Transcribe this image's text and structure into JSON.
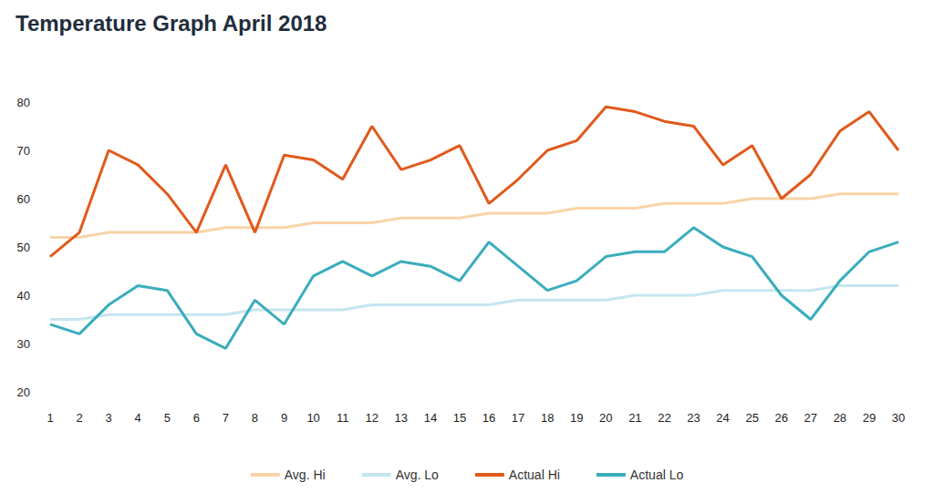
{
  "chart_data": {
    "type": "line",
    "title": "Temperature Graph April 2018",
    "categories": [
      "1",
      "2",
      "3",
      "4",
      "5",
      "6",
      "7",
      "8",
      "9",
      "10",
      "11",
      "12",
      "13",
      "14",
      "15",
      "16",
      "17",
      "18",
      "19",
      "20",
      "21",
      "22",
      "23",
      "24",
      "25",
      "26",
      "27",
      "28",
      "29",
      "30"
    ],
    "series": [
      {
        "name": "Avg. Hi",
        "color": "#f9d3a7",
        "values": [
          52,
          52,
          53,
          53,
          53,
          53,
          54,
          54,
          54,
          55,
          55,
          55,
          56,
          56,
          56,
          57,
          57,
          57,
          58,
          58,
          58,
          59,
          59,
          59,
          60,
          60,
          60,
          61,
          61,
          61
        ]
      },
      {
        "name": "Avg. Lo",
        "color": "#c5e6f0",
        "values": [
          35,
          35,
          36,
          36,
          36,
          36,
          36,
          37,
          37,
          37,
          37,
          38,
          38,
          38,
          38,
          38,
          39,
          39,
          39,
          39,
          40,
          40,
          40,
          41,
          41,
          41,
          41,
          42,
          42,
          42
        ]
      },
      {
        "name": "Actual Hi",
        "color": "#e05a1c",
        "values": [
          48,
          53,
          70,
          67,
          61,
          53,
          67,
          53,
          69,
          68,
          64,
          75,
          66,
          68,
          71,
          59,
          64,
          70,
          72,
          79,
          78,
          76,
          75,
          67,
          71,
          60,
          65,
          74,
          78,
          70
        ]
      },
      {
        "name": "Actual Lo",
        "color": "#3aadbc",
        "values": [
          34,
          32,
          38,
          42,
          41,
          32,
          29,
          39,
          34,
          44,
          47,
          44,
          47,
          46,
          43,
          51,
          46,
          41,
          43,
          48,
          49,
          49,
          54,
          50,
          48,
          40,
          35,
          43,
          49,
          51
        ]
      }
    ],
    "ylim": [
      20,
      80
    ],
    "yticks": [
      20,
      30,
      40,
      50,
      60,
      70,
      80
    ],
    "grid": false,
    "legend": "bottom"
  }
}
